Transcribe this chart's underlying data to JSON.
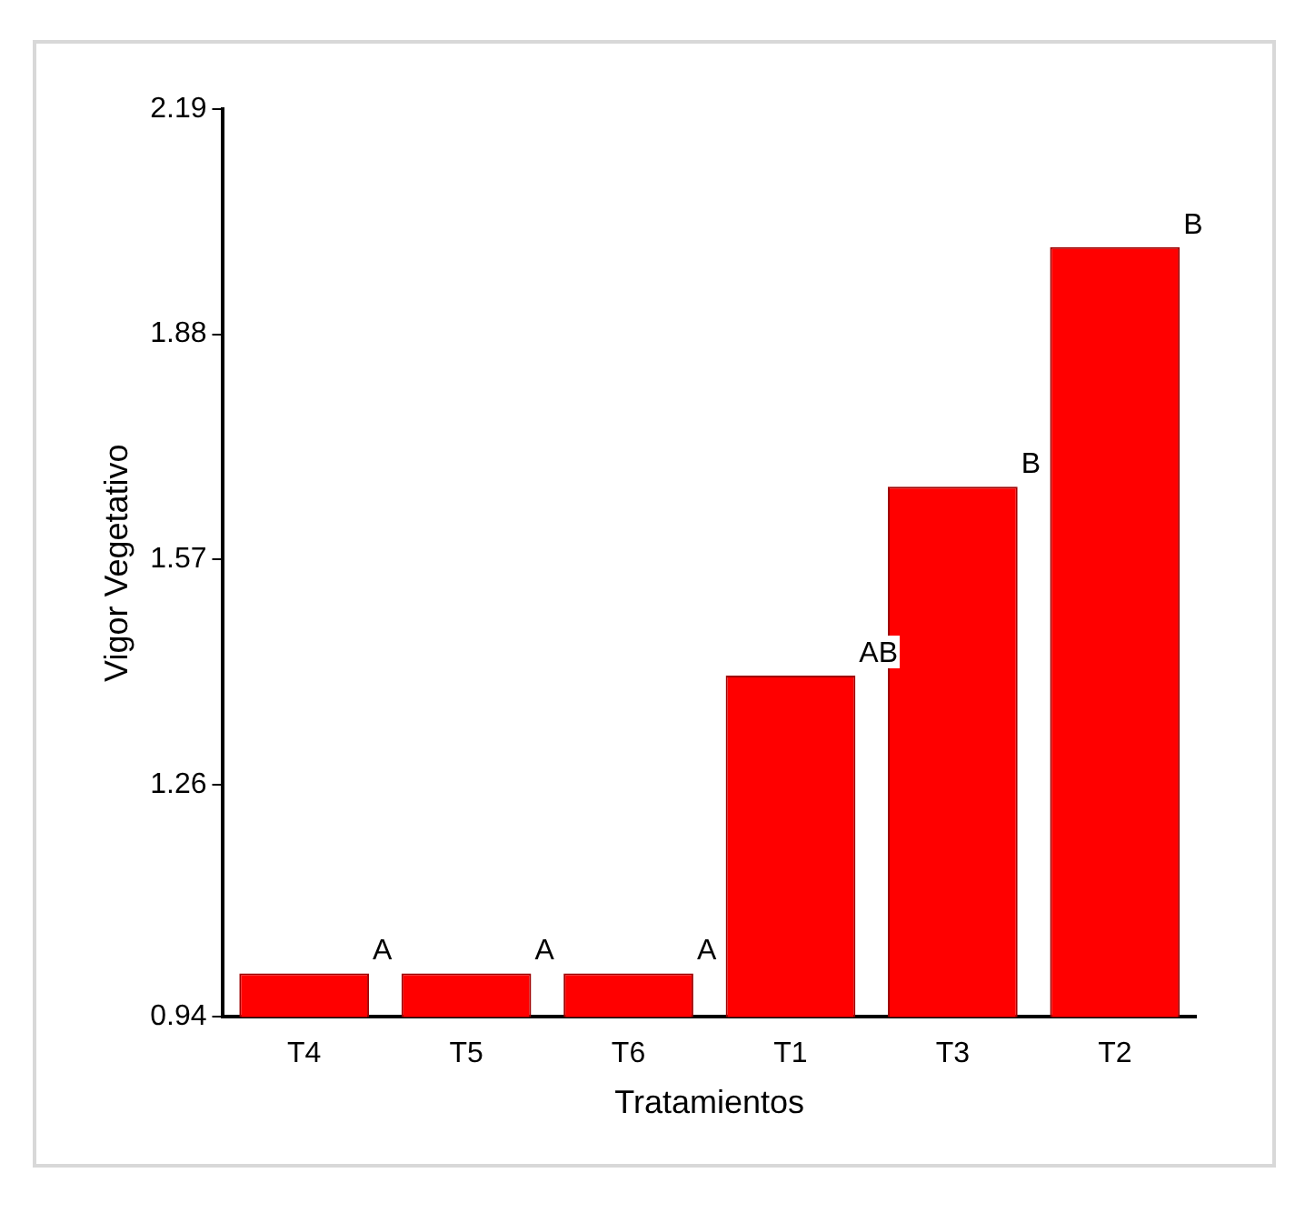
{
  "chart_data": {
    "type": "bar",
    "xlabel": "Tratamientos",
    "ylabel": "Vigor Vegetativo",
    "categories": [
      "T4",
      "T5",
      "T6",
      "T1",
      "T3",
      "T2"
    ],
    "values": [
      1.0,
      1.0,
      1.0,
      1.41,
      1.67,
      2.0
    ],
    "color": "#ff0000",
    "ylim": [
      0.94,
      2.19
    ],
    "yticks": [
      0.94,
      1.26,
      1.57,
      1.88,
      2.19
    ],
    "grid": false,
    "legend": false,
    "annotations": [
      {
        "text": "A",
        "x": "T4",
        "y": 1.0
      },
      {
        "text": "A",
        "x": "T5",
        "y": 1.0
      },
      {
        "text": "A",
        "x": "T6",
        "y": 1.0
      },
      {
        "text": "AB",
        "x": "T1",
        "y": 1.41
      },
      {
        "text": "B",
        "x": "T3",
        "y": 1.67
      },
      {
        "text": "B",
        "x": "T2",
        "y": 2.0
      }
    ]
  }
}
